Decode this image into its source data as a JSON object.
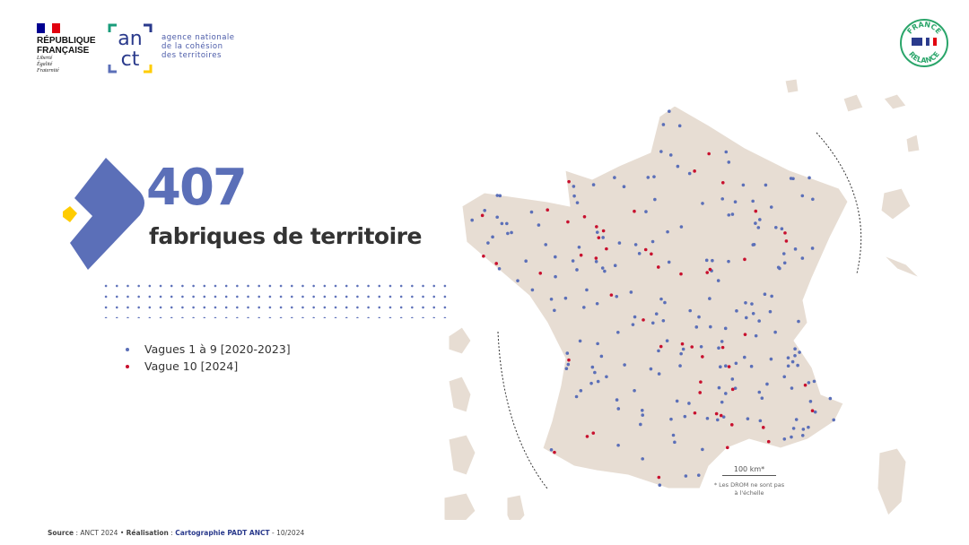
{
  "header": {
    "republique": {
      "name_line1": "RÉPUBLIQUE",
      "name_line2": "FRANÇAISE",
      "motto": [
        "Liberté",
        "Égalité",
        "Fraternité"
      ]
    },
    "anct": {
      "logo_text": "anct",
      "name_lines": [
        "agence nationale",
        "de la cohésion",
        "des territoires"
      ]
    },
    "france_relance": {
      "top": "FRANCE",
      "bottom": "RELANCE"
    }
  },
  "headline": {
    "count": "407",
    "label": "fabriques de territoire"
  },
  "legend": [
    {
      "label": "Vagues 1 à 9 [2020-2023]",
      "color": "#5b6fb8"
    },
    {
      "label": "Vague 10 [2024]",
      "color": "#c8102e"
    }
  ],
  "map": {
    "land_color": "#e7ddd3",
    "scale_label": "100 km*",
    "note": "* Les DROM ne sont pas à l'échelle"
  },
  "footer": {
    "source_label": "Source",
    "source_value": ": ANCT 2024 •",
    "realisation_label": "Réalisation",
    "realisation_sep": ":",
    "realisation_value": "Cartographie PADT ANCT",
    "date": "- 10/2024"
  },
  "colors": {
    "brand_blue": "#5b6fb8",
    "accent_yellow": "#ffcc00",
    "red": "#c8102e"
  }
}
